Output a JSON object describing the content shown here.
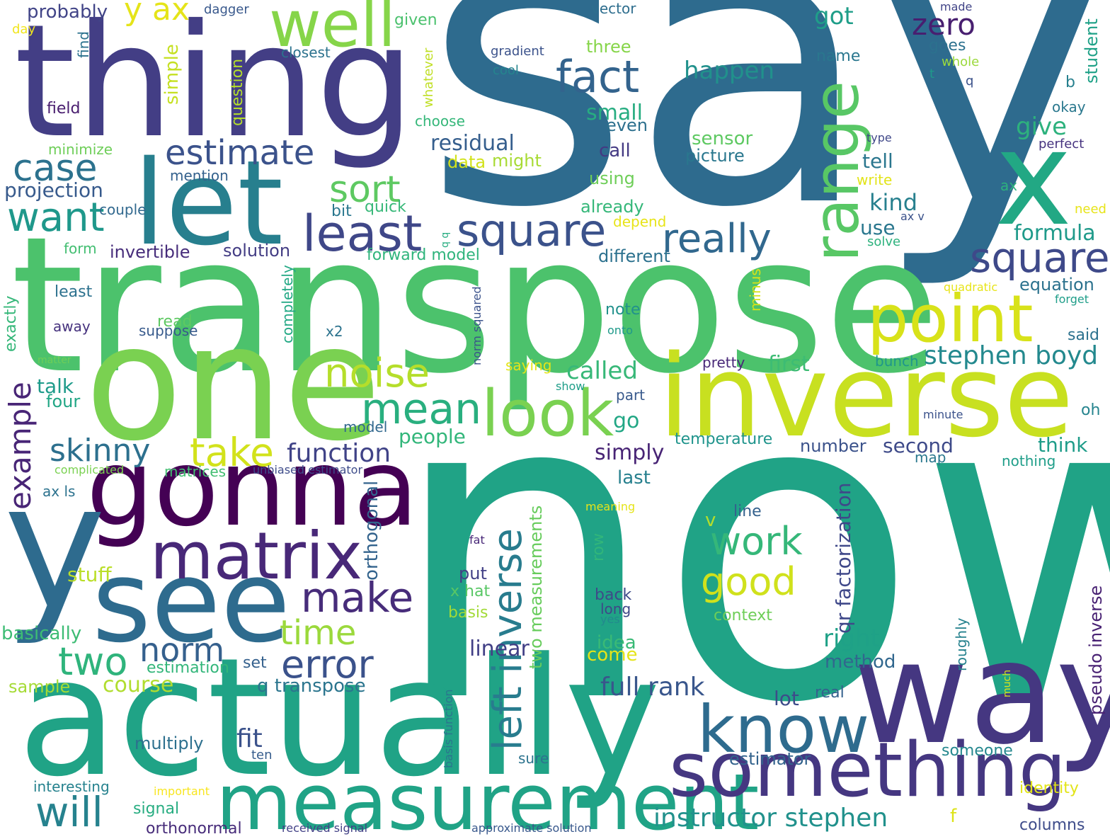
{
  "words": [
    {
      "text": "say",
      "color": "#2e6b8e"
    },
    {
      "text": "now",
      "color": "#20a386"
    },
    {
      "text": "transpose",
      "color": "#4cc26c"
    },
    {
      "text": "thing",
      "color": "#433e85"
    },
    {
      "text": "actually",
      "color": "#20a386"
    },
    {
      "text": "one",
      "color": "#7ad151"
    },
    {
      "text": "inverse",
      "color": "#c8e020"
    },
    {
      "text": "gonna",
      "color": "#440154"
    },
    {
      "text": "way",
      "color": "#453781"
    },
    {
      "text": "see",
      "color": "#2e6b8e"
    },
    {
      "text": "y",
      "color": "#2e6b8e"
    },
    {
      "text": "let",
      "color": "#277f8e"
    },
    {
      "text": "x",
      "color": "#22a884"
    },
    {
      "text": "measurement",
      "color": "#20a386"
    },
    {
      "text": "something",
      "color": "#453781"
    },
    {
      "text": "matrix",
      "color": "#482878"
    },
    {
      "text": "well",
      "color": "#86d549"
    },
    {
      "text": "range",
      "color": "#58c765"
    },
    {
      "text": "point",
      "color": "#d8e219"
    },
    {
      "text": "look",
      "color": "#7ad151"
    },
    {
      "text": "know",
      "color": "#2e6b8e"
    },
    {
      "text": "fact",
      "color": "#33638d"
    },
    {
      "text": "least",
      "color": "#3f4788"
    },
    {
      "text": "square",
      "color": "#3b528b"
    },
    {
      "text": "square",
      "color": "#3e4989"
    },
    {
      "text": "really",
      "color": "#31688e"
    },
    {
      "text": "estimate",
      "color": "#3b528b"
    },
    {
      "text": "case",
      "color": "#2c728e"
    },
    {
      "text": "want",
      "color": "#1f988b"
    },
    {
      "text": "noise",
      "color": "#b5de2b"
    },
    {
      "text": "mean",
      "color": "#29af7f"
    },
    {
      "text": "sort",
      "color": "#5ec962"
    },
    {
      "text": "take",
      "color": "#d2e21b"
    },
    {
      "text": "make",
      "color": "#472c7a"
    },
    {
      "text": "work",
      "color": "#35b779"
    },
    {
      "text": "good",
      "color": "#d0e11c"
    },
    {
      "text": "left inverse",
      "color": "#287c8e"
    },
    {
      "text": "error",
      "color": "#3b528b"
    },
    {
      "text": "norm",
      "color": "#35608d"
    },
    {
      "text": "time",
      "color": "#9bd93c"
    },
    {
      "text": "two",
      "color": "#2fb47c"
    },
    {
      "text": "will",
      "color": "#26828e"
    },
    {
      "text": "skinny",
      "color": "#2d708e"
    },
    {
      "text": "function",
      "color": "#404387"
    },
    {
      "text": "example",
      "color": "#482576"
    },
    {
      "text": "stephen boyd",
      "color": "#23898e"
    },
    {
      "text": "instructor stephen",
      "color": "#21918c"
    },
    {
      "text": "full rank",
      "color": "#39568c"
    },
    {
      "text": "estimator",
      "color": "#33638d"
    },
    {
      "text": "zero",
      "color": "#481f70"
    },
    {
      "text": "happen",
      "color": "#21918c"
    },
    {
      "text": "got",
      "color": "#1f9e89"
    },
    {
      "text": "give",
      "color": "#2db27d"
    },
    {
      "text": "formula",
      "color": "#1f9a8a"
    },
    {
      "text": "kind",
      "color": "#27808e"
    },
    {
      "text": "tell",
      "color": "#2a768e"
    },
    {
      "text": "use",
      "color": "#2a778e"
    },
    {
      "text": "equation",
      "color": "#2c728e"
    },
    {
      "text": "residual",
      "color": "#355e8d"
    },
    {
      "text": "called",
      "color": "#37b878"
    },
    {
      "text": "first",
      "color": "#3dbc74"
    },
    {
      "text": "think",
      "color": "#1e9c89"
    },
    {
      "text": "second",
      "color": "#3e4a89"
    },
    {
      "text": "number",
      "color": "#3b528b"
    },
    {
      "text": "right",
      "color": "#1fa187"
    },
    {
      "text": "method",
      "color": "#31678e"
    },
    {
      "text": "linear",
      "color": "#424086"
    },
    {
      "text": "idea",
      "color": "#3aba76"
    },
    {
      "text": "come",
      "color": "#e5e419"
    },
    {
      "text": "simply",
      "color": "#482475"
    },
    {
      "text": "last",
      "color": "#27808e"
    },
    {
      "text": "go",
      "color": "#22a785"
    },
    {
      "text": "people",
      "color": "#32b67a"
    },
    {
      "text": "course",
      "color": "#b0dd2f"
    },
    {
      "text": "q transpose",
      "color": "#2b758e"
    },
    {
      "text": "fit",
      "color": "#3b528b"
    },
    {
      "text": "lot",
      "color": "#3e4c8a"
    },
    {
      "text": "real",
      "color": "#34618d"
    },
    {
      "text": "someone",
      "color": "#24878e"
    },
    {
      "text": "identity",
      "color": "#e2e418"
    },
    {
      "text": "columns",
      "color": "#3e4c8a"
    },
    {
      "text": "multiply",
      "color": "#2d708e"
    },
    {
      "text": "talk",
      "color": "#1e9b8a"
    },
    {
      "text": "four",
      "color": "#21a685"
    },
    {
      "text": "projection",
      "color": "#375a8c"
    },
    {
      "text": "stuff",
      "color": "#bade28"
    },
    {
      "text": "basically",
      "color": "#3dbc74"
    },
    {
      "text": "estimation",
      "color": "#32b67a"
    },
    {
      "text": "sample",
      "color": "#a5db36"
    },
    {
      "text": "set",
      "color": "#34608d"
    },
    {
      "text": "orthogonal",
      "color": "#33638d"
    },
    {
      "text": "qr factorization",
      "color": "#3f4889"
    },
    {
      "text": "two measurements",
      "color": "#67cc5c"
    },
    {
      "text": "pseudo inverse",
      "color": "#482173"
    },
    {
      "text": "small",
      "color": "#27ad81"
    },
    {
      "text": "even",
      "color": "#2d708e"
    },
    {
      "text": "call",
      "color": "#443a83"
    },
    {
      "text": "sensor",
      "color": "#5ec962"
    },
    {
      "text": "picture",
      "color": "#2a778e"
    },
    {
      "text": "using",
      "color": "#6ece58"
    },
    {
      "text": "already",
      "color": "#35b779"
    },
    {
      "text": "depend",
      "color": "#e7e419"
    },
    {
      "text": "different",
      "color": "#2c718e"
    },
    {
      "text": "forward model",
      "color": "#2fb47c"
    },
    {
      "text": "solution",
      "color": "#433d84"
    },
    {
      "text": "invertible",
      "color": "#472d7b"
    },
    {
      "text": "data",
      "color": "#d2e21b"
    },
    {
      "text": "might",
      "color": "#a8db34"
    },
    {
      "text": "quick",
      "color": "#37b878"
    },
    {
      "text": "bit",
      "color": "#2a778e"
    },
    {
      "text": "note",
      "color": "#21918c"
    },
    {
      "text": "onto",
      "color": "#1f9a8a"
    },
    {
      "text": "pretty",
      "color": "#482878"
    },
    {
      "text": "saying",
      "color": "#e5e419"
    },
    {
      "text": "show",
      "color": "#1f9e89"
    },
    {
      "text": "part",
      "color": "#38598c"
    },
    {
      "text": "temperature",
      "color": "#1f948c"
    },
    {
      "text": "map",
      "color": "#2a788e"
    },
    {
      "text": "nothing",
      "color": "#1f9e89"
    },
    {
      "text": "minute",
      "color": "#3b528b"
    },
    {
      "text": "oh",
      "color": "#25848e"
    },
    {
      "text": "said",
      "color": "#2c718e"
    },
    {
      "text": "bunch",
      "color": "#1f968b"
    },
    {
      "text": "forget",
      "color": "#1f9e89"
    },
    {
      "text": "quadratic",
      "color": "#e7e419"
    },
    {
      "text": "line",
      "color": "#34618d"
    },
    {
      "text": "row",
      "color": "#32b67a"
    },
    {
      "text": "meaning",
      "color": "#e5e419"
    },
    {
      "text": "fat",
      "color": "#482878"
    },
    {
      "text": "v",
      "color": "#b5de2b"
    },
    {
      "text": "context",
      "color": "#6ece58"
    },
    {
      "text": "roughly",
      "color": "#26828e"
    },
    {
      "text": "much",
      "color": "#d8e219"
    },
    {
      "text": "yes",
      "color": "#23898e"
    },
    {
      "text": "long",
      "color": "#3f4788"
    },
    {
      "text": "back",
      "color": "#3e4a89"
    },
    {
      "text": "x hat",
      "color": "#58c765"
    },
    {
      "text": "put",
      "color": "#424086"
    },
    {
      "text": "basis",
      "color": "#a2da37"
    },
    {
      "text": "model",
      "color": "#31688e"
    },
    {
      "text": "sure",
      "color": "#2c738e"
    },
    {
      "text": "basis function",
      "color": "#2a768e"
    },
    {
      "text": "norm squared",
      "color": "#3b528b"
    },
    {
      "text": "approximate solution",
      "color": "#38588c"
    },
    {
      "text": "received signal",
      "color": "#424186"
    },
    {
      "text": "orthonormal",
      "color": "#472c7a"
    },
    {
      "text": "signal",
      "color": "#27ad81"
    },
    {
      "text": "important",
      "color": "#f8e621"
    },
    {
      "text": "interesting",
      "color": "#26828e"
    },
    {
      "text": "ten",
      "color": "#365d8d"
    },
    {
      "text": "f",
      "color": "#dde318"
    },
    {
      "text": "ax ls",
      "color": "#2c728e"
    },
    {
      "text": "matrices",
      "color": "#42be71"
    },
    {
      "text": "unbiased estimator",
      "color": "#3e4c8a"
    },
    {
      "text": "complicated",
      "color": "#7ad151"
    },
    {
      "text": "suppose",
      "color": "#375a8c"
    },
    {
      "text": "x2",
      "color": "#2c738e"
    },
    {
      "text": "read",
      "color": "#5ec962"
    },
    {
      "text": "away",
      "color": "#46327e"
    },
    {
      "text": "least",
      "color": "#2c718e"
    },
    {
      "text": "matter",
      "color": "#6ece58"
    },
    {
      "text": "exactly",
      "color": "#35b779"
    },
    {
      "text": "completely",
      "color": "#22a884"
    },
    {
      "text": "minus",
      "color": "#d5e21a"
    },
    {
      "text": "q q",
      "color": "#27ad81"
    },
    {
      "text": "form",
      "color": "#42be71"
    },
    {
      "text": "couple",
      "color": "#31688e"
    },
    {
      "text": "mention",
      "color": "#34618d"
    },
    {
      "text": "minimize",
      "color": "#6ece58"
    },
    {
      "text": "field",
      "color": "#481c6e"
    },
    {
      "text": "find",
      "color": "#2c728e"
    },
    {
      "text": "day",
      "color": "#f1e51d"
    },
    {
      "text": "probably",
      "color": "#414487"
    },
    {
      "text": "y ax",
      "color": "#e5e419"
    },
    {
      "text": "simple",
      "color": "#c5e021"
    },
    {
      "text": "question",
      "color": "#b5de2b"
    },
    {
      "text": "dagger",
      "color": "#38588c"
    },
    {
      "text": "closest",
      "color": "#2c728e"
    },
    {
      "text": "given",
      "color": "#4ac16d"
    },
    {
      "text": "whatever",
      "color": "#c0df25"
    },
    {
      "text": "choose",
      "color": "#35b779"
    },
    {
      "text": "vector",
      "color": "#2e6e8e"
    },
    {
      "text": "gradient",
      "color": "#3b528b"
    },
    {
      "text": "cool",
      "color": "#25858e"
    },
    {
      "text": "three",
      "color": "#86d549"
    },
    {
      "text": "made",
      "color": "#414487"
    },
    {
      "text": "goes",
      "color": "#2c718e"
    },
    {
      "text": "whole",
      "color": "#9bd93c"
    },
    {
      "text": "t",
      "color": "#1f998a"
    },
    {
      "text": "q",
      "color": "#3b528b"
    },
    {
      "text": "name",
      "color": "#2a778e"
    },
    {
      "text": "student",
      "color": "#1fa187"
    },
    {
      "text": "b",
      "color": "#27808e"
    },
    {
      "text": "okay",
      "color": "#2a788e"
    },
    {
      "text": "perfect",
      "color": "#46337f"
    },
    {
      "text": "type",
      "color": "#3f4788"
    },
    {
      "text": "write",
      "color": "#e2e418"
    },
    {
      "text": "ax",
      "color": "#2db27d"
    },
    {
      "text": "need",
      "color": "#e7e419"
    },
    {
      "text": "ax v",
      "color": "#3b528b"
    },
    {
      "text": "solve",
      "color": "#2db27d"
    }
  ]
}
